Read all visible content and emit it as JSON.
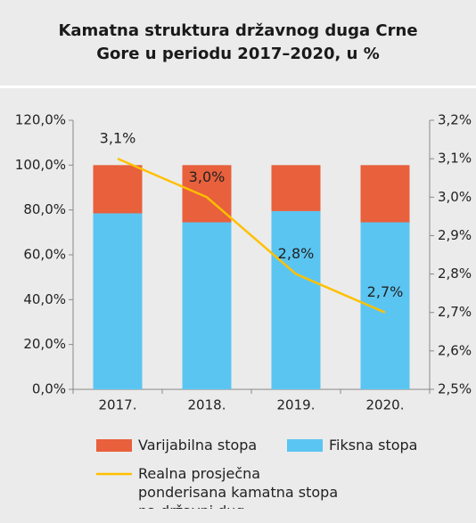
{
  "chart_data": {
    "type": "bar",
    "title": "Kamatna struktura državnog duga Crne Gore u periodu 2017–2020, u %",
    "categories": [
      "2017.",
      "2018.",
      "2019.",
      "2020."
    ],
    "series": [
      {
        "name": "Varijabilna stopa",
        "type": "bar",
        "color": "#e8603c",
        "values": [
          21.5,
          25.5,
          20.5,
          25.5
        ]
      },
      {
        "name": "Fiksna stopa",
        "type": "bar",
        "color": "#5bc5f2",
        "values": [
          78.5,
          74.5,
          79.5,
          74.5
        ]
      },
      {
        "name": "Realna prosječna ponderisana kamatna stopa na državni dug",
        "type": "line",
        "axis": "y2",
        "color": "#ffc000",
        "values": [
          3.1,
          3.0,
          2.8,
          2.7
        ],
        "value_labels": [
          "3,1%",
          "3,0%",
          "2,8%",
          "2,7%"
        ]
      }
    ],
    "ylim": [
      0,
      120
    ],
    "yticks": [
      {
        "value": 0,
        "label": "0,0%"
      },
      {
        "value": 20,
        "label": "20,0%"
      },
      {
        "value": 40,
        "label": "40,0%"
      },
      {
        "value": 60,
        "label": "60,0%"
      },
      {
        "value": 80,
        "label": "80,0%"
      },
      {
        "value": 100,
        "label": "100,0%"
      },
      {
        "value": 120,
        "label": "120,0%"
      }
    ],
    "y2lim": [
      2.5,
      3.2
    ],
    "y2ticks": [
      {
        "value": 2.5,
        "label": "2,5%"
      },
      {
        "value": 2.6,
        "label": "2,6%"
      },
      {
        "value": 2.7,
        "label": "2,7%"
      },
      {
        "value": 2.8,
        "label": "2,8%"
      },
      {
        "value": 2.9,
        "label": "2,9%"
      },
      {
        "value": 3.0,
        "label": "3,0%"
      },
      {
        "value": 3.1,
        "label": "3,1%"
      },
      {
        "value": 3.2,
        "label": "3,2%"
      }
    ],
    "grid": false
  }
}
